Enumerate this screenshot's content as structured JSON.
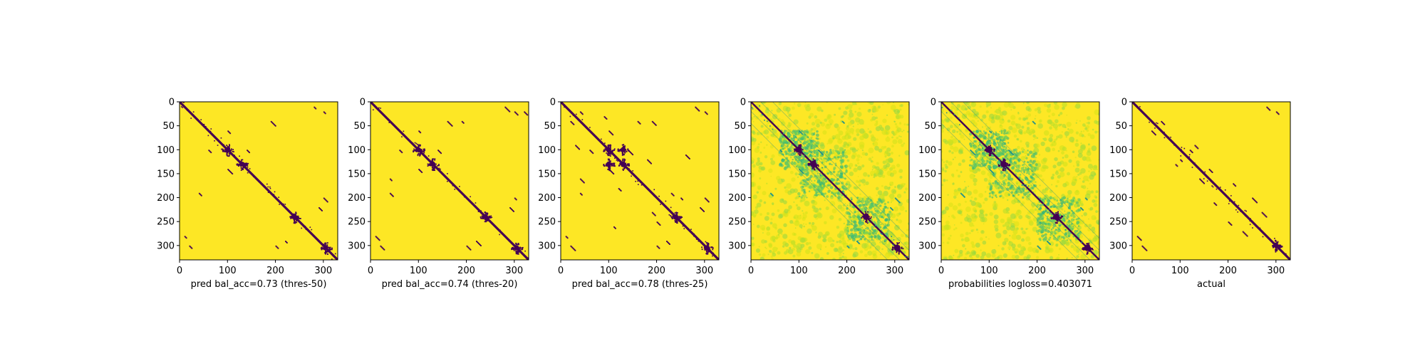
{
  "chart_data": [
    {
      "type": "heatmap",
      "xlabel": "pred bal_acc=0.73 (thres-50)",
      "size": 330,
      "xlim": [
        0,
        330
      ],
      "ylim": [
        330,
        0
      ],
      "xticks": [
        0,
        100,
        200,
        300
      ],
      "yticks": [
        0,
        50,
        100,
        150,
        200,
        250,
        300
      ],
      "binary": true,
      "colormap": "viridis",
      "colors": {
        "high": "#fde725",
        "low": "#440154"
      },
      "contact_clusters": [
        [
          100,
          100
        ],
        [
          130,
          130
        ],
        [
          240,
          240
        ],
        [
          305,
          305
        ]
      ],
      "off_diagonal_points": [
        [
          100,
          140
        ],
        [
          140,
          100
        ],
        [
          40,
          190
        ],
        [
          190,
          40
        ],
        [
          20,
          300
        ],
        [
          300,
          20
        ],
        [
          280,
          10
        ],
        [
          10,
          280
        ],
        [
          200,
          300
        ],
        [
          300,
          200
        ],
        [
          60,
          100
        ],
        [
          100,
          60
        ],
        [
          220,
          290
        ],
        [
          290,
          220
        ]
      ]
    },
    {
      "type": "heatmap",
      "xlabel": "pred bal_acc=0.74 (thres-20)",
      "size": 330,
      "xlim": [
        0,
        330
      ],
      "ylim": [
        330,
        0
      ],
      "xticks": [
        0,
        100,
        200,
        300
      ],
      "yticks": [
        0,
        50,
        100,
        150,
        200,
        250,
        300
      ],
      "binary": true,
      "colormap": "viridis",
      "colors": {
        "high": "#fde725",
        "low": "#440154"
      },
      "contact_clusters": [
        [
          100,
          100
        ],
        [
          130,
          130
        ],
        [
          240,
          240
        ],
        [
          305,
          305
        ]
      ],
      "off_diagonal_points": [
        [
          100,
          140
        ],
        [
          140,
          100
        ],
        [
          40,
          190
        ],
        [
          190,
          40
        ],
        [
          20,
          300
        ],
        [
          300,
          20
        ],
        [
          280,
          10
        ],
        [
          10,
          280
        ],
        [
          200,
          300
        ],
        [
          300,
          200
        ],
        [
          60,
          100
        ],
        [
          100,
          60
        ],
        [
          160,
          40
        ],
        [
          40,
          160
        ],
        [
          220,
          290
        ],
        [
          290,
          220
        ],
        [
          320,
          20
        ]
      ]
    },
    {
      "type": "heatmap",
      "xlabel": "pred bal_acc=0.78 (thres-25)",
      "size": 330,
      "xlim": [
        0,
        330
      ],
      "ylim": [
        330,
        0
      ],
      "xticks": [
        0,
        100,
        200,
        300
      ],
      "yticks": [
        0,
        50,
        100,
        150,
        200,
        250,
        300
      ],
      "binary": true,
      "colormap": "viridis",
      "colors": {
        "high": "#fde725",
        "low": "#440154"
      },
      "contact_clusters": [
        [
          100,
          100
        ],
        [
          130,
          130
        ],
        [
          240,
          240
        ],
        [
          305,
          305
        ],
        [
          100,
          130
        ],
        [
          130,
          100
        ]
      ],
      "off_diagonal_points": [
        [
          100,
          140
        ],
        [
          140,
          100
        ],
        [
          40,
          190
        ],
        [
          190,
          40
        ],
        [
          20,
          300
        ],
        [
          300,
          20
        ],
        [
          280,
          10
        ],
        [
          10,
          280
        ],
        [
          200,
          300
        ],
        [
          300,
          200
        ],
        [
          60,
          100
        ],
        [
          100,
          60
        ],
        [
          160,
          40
        ],
        [
          40,
          160
        ],
        [
          220,
          290
        ],
        [
          290,
          220
        ],
        [
          20,
          40
        ],
        [
          40,
          20
        ],
        [
          200,
          250
        ],
        [
          250,
          200
        ],
        [
          190,
          230
        ],
        [
          230,
          190
        ],
        [
          260,
          110
        ],
        [
          110,
          260
        ],
        [
          90,
          30
        ],
        [
          30,
          90
        ],
        [
          180,
          120
        ],
        [
          120,
          180
        ]
      ]
    },
    {
      "type": "heatmap",
      "xlabel": "",
      "size": 330,
      "xlim": [
        0,
        330
      ],
      "ylim": [
        330,
        0
      ],
      "xticks": [
        0,
        100,
        200,
        300
      ],
      "yticks": [],
      "binary": false,
      "colormap": "viridis",
      "colors": {
        "high": "#fde725",
        "low": "#440154",
        "mid": "#21918c"
      },
      "contact_clusters": [
        [
          100,
          100
        ],
        [
          130,
          130
        ],
        [
          240,
          240
        ],
        [
          305,
          305
        ]
      ],
      "off_diagonal_points": [
        [
          100,
          140
        ],
        [
          140,
          100
        ],
        [
          40,
          190
        ],
        [
          190,
          40
        ],
        [
          200,
          300
        ],
        [
          300,
          200
        ],
        [
          60,
          100
        ],
        [
          100,
          60
        ],
        [
          220,
          290
        ],
        [
          290,
          220
        ]
      ]
    },
    {
      "type": "heatmap",
      "xlabel": "probabilities logloss=0.403071",
      "size": 330,
      "xlim": [
        0,
        330
      ],
      "ylim": [
        330,
        0
      ],
      "xticks": [
        0,
        100,
        200,
        300
      ],
      "yticks": [],
      "binary": false,
      "colormap": "viridis",
      "colors": {
        "high": "#fde725",
        "low": "#440154",
        "mid": "#21918c"
      },
      "contact_clusters": [
        [
          100,
          100
        ],
        [
          130,
          130
        ],
        [
          240,
          240
        ],
        [
          305,
          305
        ]
      ],
      "off_diagonal_points": [
        [
          100,
          140
        ],
        [
          140,
          100
        ],
        [
          40,
          190
        ],
        [
          190,
          40
        ],
        [
          200,
          300
        ],
        [
          300,
          200
        ],
        [
          60,
          100
        ],
        [
          100,
          60
        ],
        [
          220,
          290
        ],
        [
          290,
          220
        ]
      ]
    },
    {
      "type": "heatmap",
      "xlabel": "actual",
      "size": 330,
      "xlim": [
        0,
        330
      ],
      "ylim": [
        330,
        0
      ],
      "xticks": [
        0,
        100,
        200,
        300
      ],
      "yticks": [],
      "binary": true,
      "colormap": "viridis",
      "colors": {
        "high": "#fde725",
        "low": "#440154"
      },
      "contact_clusters": [
        [
          300,
          300
        ]
      ],
      "off_diagonal_points": [
        [
          60,
          40
        ],
        [
          40,
          60
        ],
        [
          100,
          120
        ],
        [
          120,
          100
        ],
        [
          140,
          160
        ],
        [
          160,
          140
        ],
        [
          280,
          10
        ],
        [
          10,
          280
        ],
        [
          300,
          20
        ],
        [
          20,
          300
        ],
        [
          200,
          250
        ],
        [
          250,
          200
        ],
        [
          230,
          270
        ],
        [
          270,
          230
        ],
        [
          170,
          210
        ],
        [
          210,
          170
        ],
        [
          90,
          130
        ],
        [
          130,
          90
        ]
      ]
    }
  ]
}
